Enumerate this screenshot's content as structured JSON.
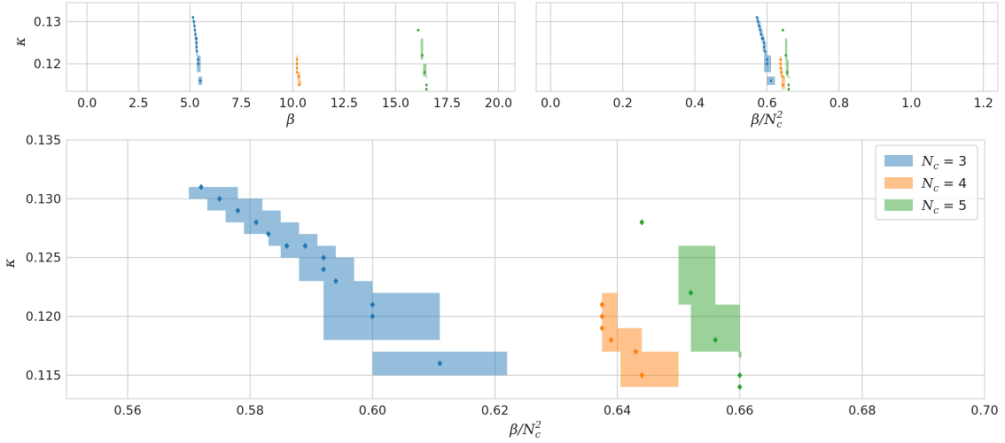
{
  "colors": {
    "Nc3": "#1f77b4",
    "Nc4": "#ff7f0e",
    "Nc5": "#2ca02c",
    "band_alpha": 0.48,
    "grid": "#cccccc"
  },
  "chart_data": [
    {
      "id": "top-left",
      "type": "scatter",
      "xlabel": "β",
      "ylabel": "κ",
      "xlim": [
        -1.0,
        20.8
      ],
      "ylim": [
        0.1135,
        0.1345
      ],
      "xticks": [
        0.0,
        2.5,
        5.0,
        7.5,
        10.0,
        12.5,
        15.0,
        17.5,
        20.0
      ],
      "xtick_labels": [
        "0.0",
        "2.5",
        "5.0",
        "7.5",
        "10.0",
        "12.5",
        "15.0",
        "17.5",
        "20.0"
      ],
      "yticks": [
        0.12,
        0.13
      ],
      "ytick_labels": [
        "0.12",
        "0.13"
      ],
      "grid": true,
      "series": [
        {
          "color_key": "Nc3",
          "points": [
            [
              5.148,
              0.131
            ],
            [
              5.2,
              0.13
            ],
            [
              5.227,
              0.129
            ],
            [
              5.248,
              0.128
            ],
            [
              5.273,
              0.127
            ],
            [
              5.3,
              0.126
            ],
            [
              5.327,
              0.126
            ],
            [
              5.327,
              0.125
            ],
            [
              5.327,
              0.124
            ],
            [
              5.347,
              0.123
            ],
            [
              5.4,
              0.121
            ],
            [
              5.4,
              0.12
            ],
            [
              5.5,
              0.116
            ]
          ],
          "bands": [
            [
              5.13,
              5.19,
              0.13,
              0.131
            ],
            [
              5.16,
              5.24,
              0.129,
              0.13
            ],
            [
              5.19,
              5.27,
              0.128,
              0.129
            ],
            [
              5.21,
              5.29,
              0.127,
              0.128
            ],
            [
              5.23,
              5.32,
              0.126,
              0.127
            ],
            [
              5.25,
              5.35,
              0.125,
              0.126
            ],
            [
              5.27,
              5.37,
              0.123,
              0.125
            ],
            [
              5.31,
              5.38,
              0.122,
              0.123
            ],
            [
              5.34,
              5.52,
              0.118,
              0.122
            ],
            [
              5.41,
              5.6,
              0.115,
              0.117
            ]
          ]
        },
        {
          "color_key": "Nc4",
          "points": [
            [
              10.2,
              0.121
            ],
            [
              10.2,
              0.12
            ],
            [
              10.2,
              0.119
            ],
            [
              10.21,
              0.118
            ],
            [
              10.3,
              0.117
            ],
            [
              10.31,
              0.115
            ]
          ],
          "bands": [
            [
              10.18,
              10.24,
              0.118,
              0.122
            ],
            [
              10.22,
              10.36,
              0.116,
              0.118
            ],
            [
              10.26,
              10.42,
              0.115,
              0.116
            ]
          ]
        },
        {
          "color_key": "Nc5",
          "points": [
            [
              16.1,
              0.128
            ],
            [
              16.3,
              0.122
            ],
            [
              16.4,
              0.118
            ],
            [
              16.5,
              0.115
            ],
            [
              16.5,
              0.114
            ]
          ],
          "bands": [
            [
              16.22,
              16.34,
              0.121,
              0.126
            ],
            [
              16.34,
              16.5,
              0.117,
              0.12
            ],
            [
              16.49,
              16.51,
              0.1165,
              0.117
            ]
          ]
        }
      ]
    },
    {
      "id": "top-right",
      "type": "scatter",
      "xlabel": "β/N_c^2",
      "ylabel": "",
      "xlim": [
        -0.04,
        1.24
      ],
      "ylim": [
        0.1135,
        0.1345
      ],
      "xticks": [
        0.0,
        0.2,
        0.4,
        0.6,
        0.8,
        1.0,
        1.2
      ],
      "xtick_labels": [
        "0.0",
        "0.2",
        "0.4",
        "0.6",
        "0.8",
        "1.0",
        "1.2"
      ],
      "yticks": [
        0.12,
        0.13
      ],
      "grid": true,
      "series": [
        {
          "color_key": "Nc3",
          "points": [
            [
              0.572,
              0.131
            ],
            [
              0.575,
              0.13
            ],
            [
              0.578,
              0.129
            ],
            [
              0.581,
              0.128
            ],
            [
              0.583,
              0.127
            ],
            [
              0.586,
              0.126
            ],
            [
              0.589,
              0.126
            ],
            [
              0.592,
              0.125
            ],
            [
              0.592,
              0.124
            ],
            [
              0.594,
              0.123
            ],
            [
              0.6,
              0.121
            ],
            [
              0.6,
              0.12
            ],
            [
              0.611,
              0.116
            ]
          ],
          "bands": [
            [
              0.57,
              0.578,
              0.13,
              0.131
            ],
            [
              0.573,
              0.582,
              0.129,
              0.13
            ],
            [
              0.576,
              0.585,
              0.128,
              0.129
            ],
            [
              0.579,
              0.588,
              0.127,
              0.128
            ],
            [
              0.583,
              0.591,
              0.126,
              0.127
            ],
            [
              0.585,
              0.594,
              0.125,
              0.126
            ],
            [
              0.588,
              0.597,
              0.123,
              0.125
            ],
            [
              0.592,
              0.6,
              0.122,
              0.123
            ],
            [
              0.592,
              0.611,
              0.118,
              0.122
            ],
            [
              0.6,
              0.622,
              0.115,
              0.117
            ]
          ]
        },
        {
          "color_key": "Nc4",
          "points": [
            [
              0.6375,
              0.121
            ],
            [
              0.6375,
              0.12
            ],
            [
              0.6375,
              0.119
            ],
            [
              0.639,
              0.118
            ],
            [
              0.643,
              0.117
            ],
            [
              0.644,
              0.115
            ]
          ],
          "bands": [
            [
              0.6375,
              0.64,
              0.119,
              0.122
            ],
            [
              0.6375,
              0.644,
              0.117,
              0.119
            ],
            [
              0.6405,
              0.65,
              0.114,
              0.117
            ]
          ]
        },
        {
          "color_key": "Nc5",
          "points": [
            [
              0.644,
              0.128
            ],
            [
              0.652,
              0.122
            ],
            [
              0.656,
              0.118
            ],
            [
              0.66,
              0.115
            ],
            [
              0.66,
              0.114
            ]
          ],
          "bands": [
            [
              0.65,
              0.656,
              0.121,
              0.126
            ],
            [
              0.652,
              0.66,
              0.117,
              0.121
            ],
            [
              0.6598,
              0.6603,
              0.1165,
              0.117
            ]
          ]
        }
      ]
    },
    {
      "id": "bottom",
      "type": "scatter",
      "xlabel": "β/N_c^2",
      "ylabel": "κ",
      "xlim": [
        0.55,
        0.7
      ],
      "ylim": [
        0.113,
        0.135
      ],
      "xticks": [
        0.56,
        0.58,
        0.6,
        0.62,
        0.64,
        0.66,
        0.68,
        0.7
      ],
      "xtick_labels": [
        "0.56",
        "0.58",
        "0.60",
        "0.62",
        "0.64",
        "0.66",
        "0.68",
        "0.70"
      ],
      "yticks": [
        0.115,
        0.12,
        0.125,
        0.13,
        0.135
      ],
      "ytick_labels": [
        "0.115",
        "0.120",
        "0.125",
        "0.130",
        "0.135"
      ],
      "grid": true,
      "legend_position": "top-right",
      "legend": [
        {
          "color_key": "Nc3",
          "label_base": "N",
          "label_sub": "c",
          "label_rest": " = 3"
        },
        {
          "color_key": "Nc4",
          "label_base": "N",
          "label_sub": "c",
          "label_rest": " = 4"
        },
        {
          "color_key": "Nc5",
          "label_base": "N",
          "label_sub": "c",
          "label_rest": " = 5"
        }
      ],
      "series": [
        {
          "color_key": "Nc3",
          "points": [
            [
              0.572,
              0.131
            ],
            [
              0.575,
              0.13
            ],
            [
              0.578,
              0.129
            ],
            [
              0.581,
              0.128
            ],
            [
              0.583,
              0.127
            ],
            [
              0.586,
              0.126
            ],
            [
              0.589,
              0.126
            ],
            [
              0.592,
              0.125
            ],
            [
              0.592,
              0.124
            ],
            [
              0.594,
              0.123
            ],
            [
              0.6,
              0.121
            ],
            [
              0.6,
              0.12
            ],
            [
              0.611,
              0.116
            ]
          ],
          "bands": [
            [
              0.57,
              0.578,
              0.13,
              0.131
            ],
            [
              0.573,
              0.582,
              0.129,
              0.13
            ],
            [
              0.576,
              0.585,
              0.128,
              0.129
            ],
            [
              0.579,
              0.588,
              0.127,
              0.128
            ],
            [
              0.583,
              0.591,
              0.126,
              0.127
            ],
            [
              0.585,
              0.594,
              0.125,
              0.126
            ],
            [
              0.588,
              0.597,
              0.123,
              0.125
            ],
            [
              0.592,
              0.6,
              0.122,
              0.123
            ],
            [
              0.592,
              0.611,
              0.118,
              0.122
            ],
            [
              0.6,
              0.622,
              0.115,
              0.117
            ]
          ]
        },
        {
          "color_key": "Nc4",
          "points": [
            [
              0.6375,
              0.121
            ],
            [
              0.6375,
              0.12
            ],
            [
              0.6375,
              0.119
            ],
            [
              0.639,
              0.118
            ],
            [
              0.643,
              0.117
            ],
            [
              0.644,
              0.115
            ]
          ],
          "bands": [
            [
              0.6375,
              0.64,
              0.119,
              0.122
            ],
            [
              0.6375,
              0.644,
              0.117,
              0.119
            ],
            [
              0.6405,
              0.65,
              0.114,
              0.117
            ]
          ]
        },
        {
          "color_key": "Nc5",
          "points": [
            [
              0.644,
              0.128
            ],
            [
              0.652,
              0.122
            ],
            [
              0.656,
              0.118
            ],
            [
              0.66,
              0.115
            ],
            [
              0.66,
              0.114
            ]
          ],
          "bands": [
            [
              0.65,
              0.656,
              0.121,
              0.126
            ],
            [
              0.652,
              0.66,
              0.117,
              0.121
            ],
            [
              0.6598,
              0.6603,
              0.1165,
              0.117
            ]
          ]
        }
      ]
    }
  ]
}
